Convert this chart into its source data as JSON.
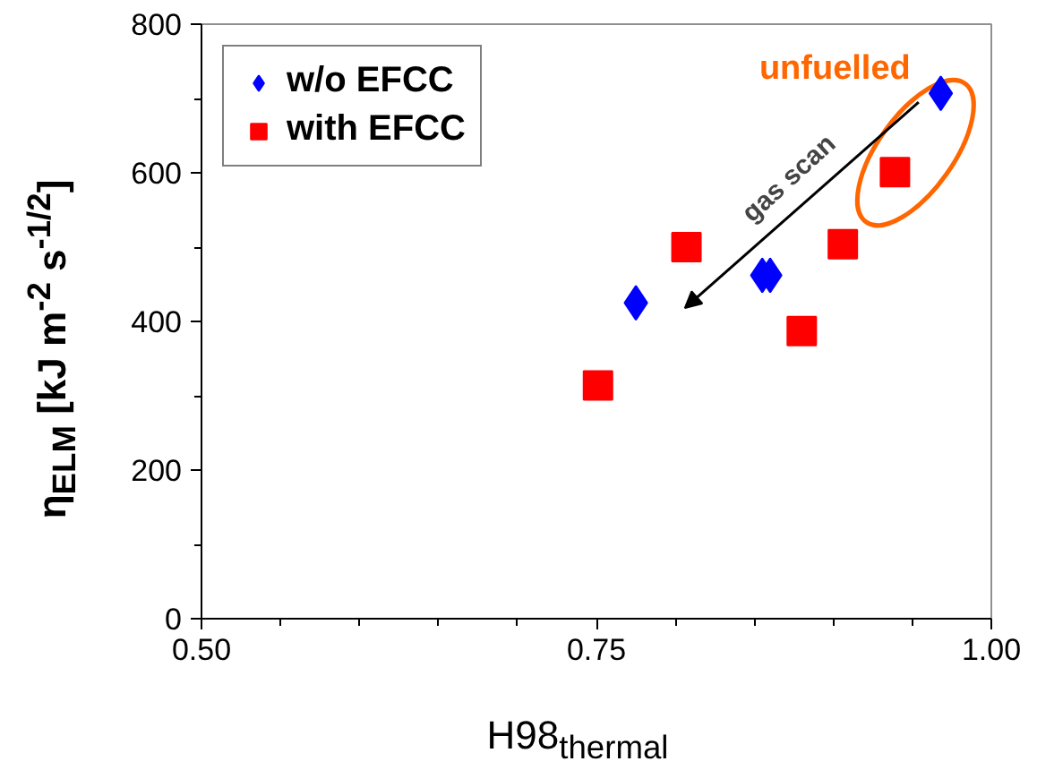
{
  "chart_data": {
    "type": "scatter",
    "xlabel": "H98$_{thermal}$",
    "ylabel": "η$_{ELM}$ [kJ m$^{-2}$ s$^{-1/2}$]",
    "xlim": [
      0.5,
      1.0
    ],
    "xticks": [
      {
        "value": 0.5,
        "label": "0.50"
      },
      {
        "value": 0.75,
        "label": "0.75"
      },
      {
        "value": 1.0,
        "label": "1.00"
      }
    ],
    "ylim": [
      0,
      800
    ],
    "yticks": [
      0,
      200,
      400,
      600,
      800
    ],
    "grid": false,
    "legend": "top left",
    "series": [
      {
        "name": "w/o EFCC",
        "color": "#0000ff",
        "marker": "diamond",
        "x": [
          0.775,
          0.855,
          0.86,
          0.968
        ],
        "values": [
          425,
          462,
          462,
          707
        ]
      },
      {
        "name": "with EFCC",
        "color": "#ff0000",
        "marker": "square",
        "x": [
          0.751,
          0.807,
          0.88,
          0.906,
          0.939
        ],
        "values": [
          314,
          500,
          387,
          504,
          601
        ]
      }
    ],
    "annotations": [
      {
        "text": "unfuelled",
        "x": 0.952,
        "y": 627
      },
      "gas scan"
    ]
  }
}
